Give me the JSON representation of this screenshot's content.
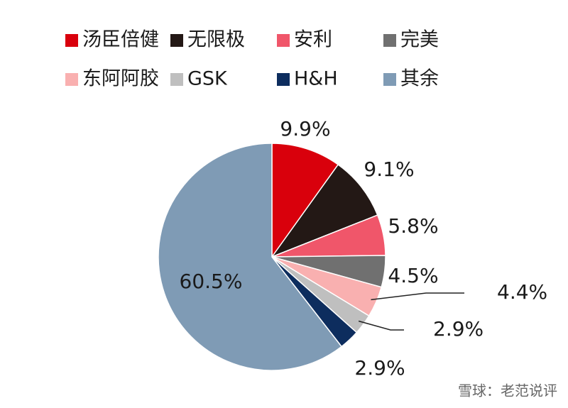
{
  "chart_data": {
    "type": "pie",
    "categories": [
      "汤臣倍健",
      "无限极",
      "安利",
      "完美",
      "东阿阿胶",
      "GSK",
      "H&H",
      "其余"
    ],
    "values": [
      9.9,
      9.1,
      5.8,
      4.5,
      4.4,
      2.9,
      2.9,
      60.5
    ],
    "value_labels": [
      "9.9%",
      "9.1%",
      "5.8%",
      "4.5%",
      "4.4%",
      "2.9%",
      "2.9%",
      "60.5%"
    ],
    "colors": [
      "#d9000c",
      "#231815",
      "#f0566a",
      "#707070",
      "#f9b0b0",
      "#bfbfbf",
      "#0d2d5e",
      "#7f9bb5"
    ],
    "legend": "top"
  },
  "watermark": "雪球：老范说评"
}
